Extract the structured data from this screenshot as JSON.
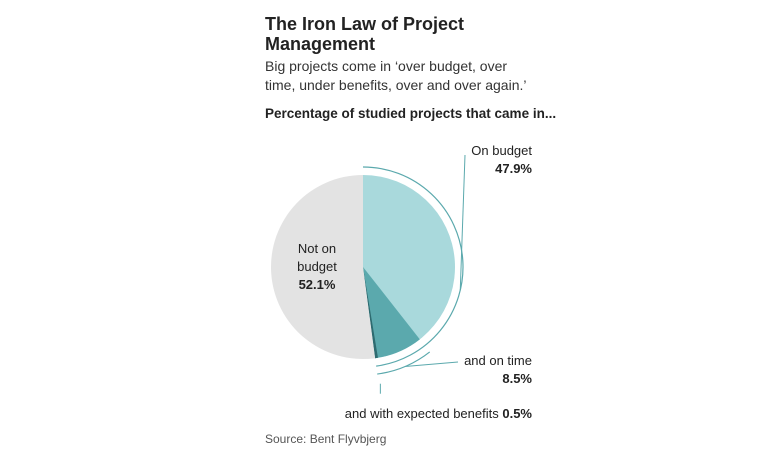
{
  "title": "The Iron Law of Project Management",
  "subtitle": "Big projects come in ‘over budget, over time, under benefits, over and over again.’",
  "chart_data": {
    "type": "pie",
    "title": "Percentage of studied projects that came in...",
    "categories": [
      "On budget",
      "and on time",
      "and with expected benefits",
      "Not on budget"
    ],
    "values": [
      47.9,
      8.5,
      0.5,
      52.1
    ],
    "value_labels": [
      "47.9%",
      "8.5%",
      "0.5%",
      "52.1%"
    ],
    "colors": [
      "#a9d9dc",
      "#5ba9ad",
      "#2e6b70",
      "#e3e3e3"
    ]
  },
  "source": "Source: Bent Flyvbjerg"
}
